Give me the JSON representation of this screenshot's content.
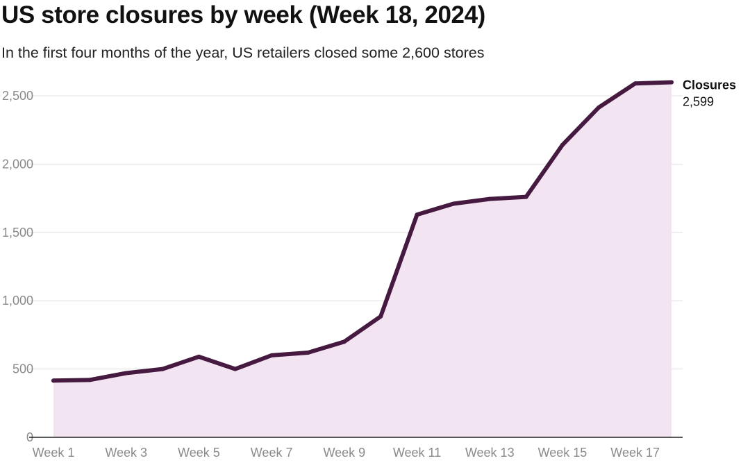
{
  "title": "US store closures by week (Week 18, 2024)",
  "subtitle": "In the first four months of the year, US retailers closed some 2,600 stores",
  "colors": {
    "line": "#461a40",
    "area": "#f3e4f2",
    "grid": "#e0e0e0",
    "tick_text": "#8a8a8a"
  },
  "chart_data": {
    "type": "area",
    "title": "US store closures by week (Week 18, 2024)",
    "subtitle": "In the first four months of the year, US retailers closed some 2,600 stores",
    "xlabel": "",
    "ylabel": "",
    "x": [
      "Week 1",
      "Week 2",
      "Week 3",
      "Week 4",
      "Week 5",
      "Week 6",
      "Week 7",
      "Week 8",
      "Week 9",
      "Week 10",
      "Week 11",
      "Week 12",
      "Week 13",
      "Week 14",
      "Week 15",
      "Week 16",
      "Week 17",
      "Week 18"
    ],
    "x_tick_labels": [
      "Week 1",
      "Week 3",
      "Week 5",
      "Week 7",
      "Week 9",
      "Week 11",
      "Week 13",
      "Week 15",
      "Week 17"
    ],
    "y_ticks": [
      0,
      500,
      1000,
      1500,
      2000,
      2500
    ],
    "y_tick_labels": [
      "0",
      "500",
      "1,000",
      "1,500",
      "2,000",
      "2,500"
    ],
    "ylim": [
      0,
      2500
    ],
    "grid": true,
    "series": [
      {
        "name": "Closures",
        "values": [
          415,
          420,
          470,
          500,
          590,
          500,
          600,
          620,
          700,
          885,
          1630,
          1710,
          1745,
          1760,
          2140,
          2415,
          2590,
          2599
        ]
      }
    ],
    "end_label": {
      "name": "Closures",
      "value_text": "2,599"
    }
  }
}
